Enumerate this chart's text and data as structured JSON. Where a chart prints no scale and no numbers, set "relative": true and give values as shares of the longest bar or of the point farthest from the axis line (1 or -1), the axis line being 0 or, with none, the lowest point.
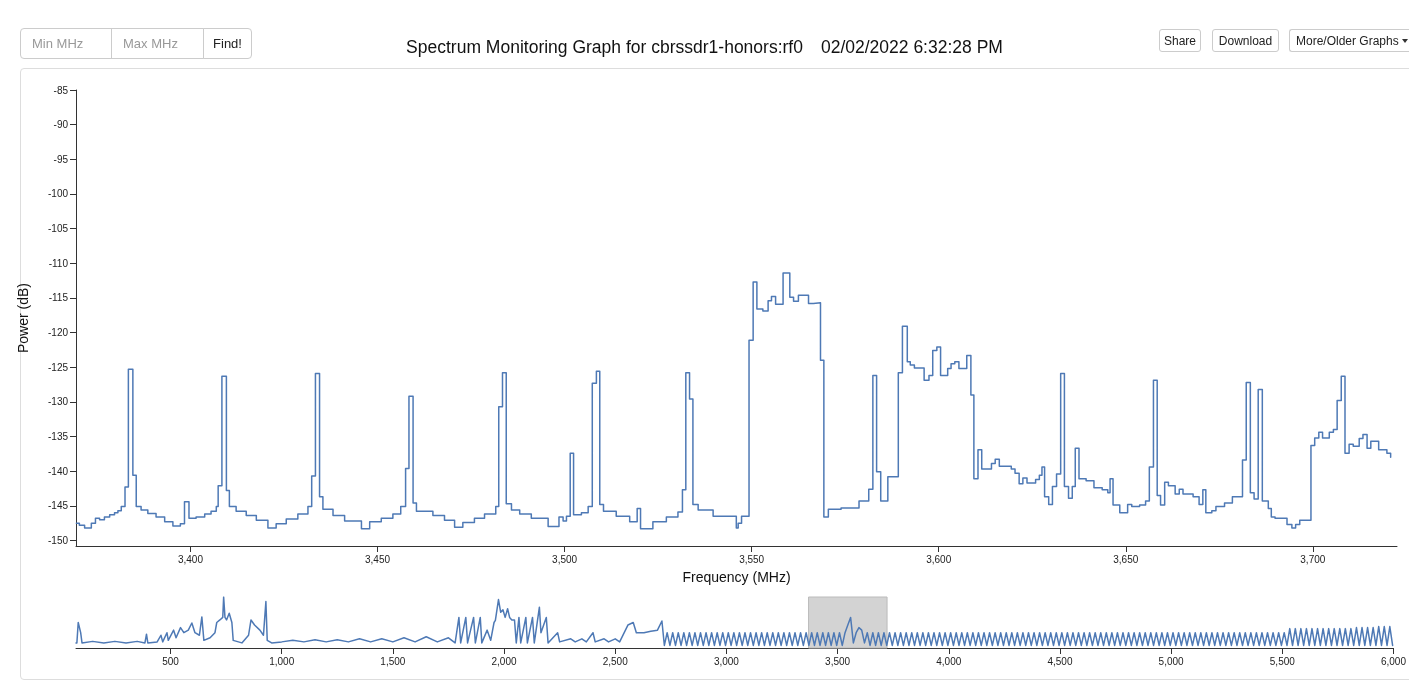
{
  "chart_data": [
    {
      "type": "step",
      "title": "Spectrum Monitoring Graph for cbrssdr1-honors:rf0",
      "subtitle": "02/02/2022 6:32:28 PM",
      "xlabel": "Frequency (MHz)",
      "ylabel": "Power (dB)",
      "annotations": [
        "Min MHz",
        "Max MHz",
        "Find!",
        "Share",
        "Download",
        "More/Older Graphs"
      ],
      "x": [
        3369.5,
        3370.3,
        3371.7,
        3373.5,
        3374.6,
        3375.7,
        3377,
        3378.4,
        3379.7,
        3380.6,
        3381.5,
        3382.5,
        3383.4,
        3384.6,
        3385.5,
        3386.8,
        3388.6,
        3390.8,
        3393.1,
        3395.3,
        3397.3,
        3398.4,
        3399.6,
        3401.5,
        3403.8,
        3405.5,
        3406.9,
        3407.4,
        3408.4,
        3409.6,
        3410.4,
        3412.2,
        3414.9,
        3417.6,
        3420.7,
        3422.9,
        3425.6,
        3428.7,
        3431.4,
        3432.4,
        3433.4,
        3434.5,
        3435.4,
        3438.1,
        3441.2,
        3445.7,
        3447.9,
        3451,
        3454.1,
        3456.2,
        3457.5,
        3458.4,
        3459.5,
        3460.4,
        3464.8,
        3467.9,
        3470.6,
        3472.8,
        3475.9,
        3478.6,
        3481.6,
        3482.4,
        3483.4,
        3484.4,
        3485.8,
        3488,
        3491.1,
        3495.6,
        3498.5,
        3499.6,
        3500.5,
        3501.5,
        3502.4,
        3504.5,
        3506.3,
        3507.4,
        3508.5,
        3509.4,
        3510.4,
        3513.8,
        3517.4,
        3519.4,
        3520.3,
        3523.6,
        3527.2,
        3530.3,
        3531.5,
        3532.4,
        3533.4,
        3534.3,
        3535.7,
        3539.7,
        3545.9,
        3546.4,
        3547.3,
        3549.3,
        3550.4,
        3551.4,
        3553,
        3554.4,
        3555.3,
        3556.4,
        3558.4,
        3560.2,
        3561.2,
        3562.5,
        3565.2,
        3566.5,
        3568.4,
        3569.3,
        3570.5,
        3573.9,
        3578.7,
        3581.3,
        3582.4,
        3583.4,
        3584.5,
        3586.4,
        3589.2,
        3590.3,
        3591.6,
        3592.4,
        3593.5,
        3596.1,
        3597.4,
        3598.4,
        3599.5,
        3600.5,
        3602.4,
        3603.3,
        3604.3,
        3605.4,
        3607.5,
        3608.6,
        3609.4,
        3610.5,
        3611.5,
        3614.1,
        3615.1,
        3616.2,
        3619.4,
        3620.4,
        3621.5,
        3622.5,
        3623.6,
        3625.9,
        3626.9,
        3627.6,
        3628.3,
        3629.4,
        3630.4,
        3631.5,
        3632.6,
        3633.6,
        3634.7,
        3635.7,
        3636.5,
        3637.5,
        3639.4,
        3641.5,
        3643.7,
        3645.2,
        3645.8,
        3646.6,
        3648.4,
        3650.5,
        3651.6,
        3653.7,
        3655.3,
        3656.3,
        3657.4,
        3658.4,
        3659.3,
        3660.4,
        3661.4,
        3663.2,
        3664.3,
        3665.3,
        3668,
        3669.6,
        3670.6,
        3671.4,
        3673,
        3674.1,
        3676.4,
        3678.5,
        3681.2,
        3682.2,
        3683.3,
        3684.3,
        3685.4,
        3686.5,
        3688.1,
        3688.9,
        3689.9,
        3693.1,
        3694.4,
        3695.4,
        3696.5,
        3699.5,
        3700.5,
        3701.6,
        3702.6,
        3704.4,
        3705.5,
        3706.5,
        3707.6,
        3708.6,
        3709.7,
        3710.8,
        3712.4,
        3713.4,
        3714.5,
        3715.5,
        3717.6,
        3719.8,
        3720.8
      ],
      "series": [
        {
          "color": "#4e79b5",
          "values": [
            -147.5,
            -147.8,
            -148.2,
            -147.5,
            -146.8,
            -147,
            -146.6,
            -146.3,
            -146,
            -145.7,
            -145.1,
            -142.3,
            -125.3,
            -140.6,
            -145.1,
            -145.6,
            -146.1,
            -146.6,
            -147.3,
            -147.9,
            -147.6,
            -144.4,
            -146.8,
            -146.6,
            -146.2,
            -145.8,
            -145.1,
            -142.1,
            -126.3,
            -142.8,
            -145.1,
            -145.8,
            -146.4,
            -147.1,
            -148.2,
            -147.6,
            -146.9,
            -146.2,
            -145.1,
            -140.7,
            -125.9,
            -143.7,
            -145.5,
            -146.4,
            -147.2,
            -148.3,
            -147.3,
            -146.8,
            -146.2,
            -145.1,
            -139.6,
            -129.2,
            -144.6,
            -145.8,
            -146.4,
            -147.1,
            -148.1,
            -147.4,
            -146.8,
            -146.2,
            -145.1,
            -130.7,
            -125.8,
            -144.7,
            -145.6,
            -146.2,
            -146.8,
            -148,
            -146.6,
            -147.2,
            -146.5,
            -137.4,
            -146.3,
            -146,
            -145.1,
            -127.3,
            -125.6,
            -144.8,
            -145.8,
            -146.5,
            -147.3,
            -145.4,
            -148.3,
            -147.3,
            -146.6,
            -145.9,
            -142.7,
            -125.8,
            -129.6,
            -144.8,
            -145.6,
            -146.5,
            -148.2,
            -147.5,
            -146.5,
            -121.1,
            -112.7,
            -116.6,
            -116.9,
            -115.4,
            -114.8,
            -115.9,
            -111.4,
            -114.9,
            -115.5,
            -114.6,
            -115.8,
            -115.7,
            -124,
            -146.6,
            -145.5,
            -145.3,
            -144.3,
            -142.6,
            -126.2,
            -140.1,
            -144.3,
            -140.8,
            -125.8,
            -119.1,
            -124.2,
            -124.7,
            -125.1,
            -126.9,
            -126.2,
            -122.6,
            -122.1,
            -126.2,
            -125.2,
            -124.5,
            -124.2,
            -125.2,
            -123.3,
            -129,
            -141.1,
            -136.9,
            -139.7,
            -138.9,
            -138.3,
            -139.3,
            -139.7,
            -140.3,
            -141.8,
            -141,
            -141.7,
            -141.2,
            -140.6,
            -139.4,
            -143.7,
            -144.8,
            -142.2,
            -140.4,
            -125.9,
            -142.2,
            -143.9,
            -142.2,
            -136.7,
            -141.1,
            -141.4,
            -142.4,
            -142.7,
            -143.1,
            -141.1,
            -144.9,
            -146,
            -144.8,
            -145.1,
            -144.9,
            -144.3,
            -139.4,
            -126.9,
            -143.5,
            -144.9,
            -141.6,
            -142.1,
            -143.3,
            -142.6,
            -143.3,
            -143.7,
            -144.8,
            -142.7,
            -146,
            -145.7,
            -145.1,
            -144.6,
            -143.7,
            -138.4,
            -127.2,
            -143.1,
            -144,
            -128.2,
            -144.3,
            -145.4,
            -146.6,
            -146.8,
            -147.7,
            -148.2,
            -147.7,
            -147.1,
            -136.3,
            -135.2,
            -134.4,
            -135.2,
            -134.4,
            -134,
            -129.8,
            -126.3,
            -137.4,
            -136.1,
            -136.4,
            -135.3,
            -134.7,
            -136.7,
            -135.7,
            -136.9,
            -137.4,
            -138
          ]
        }
      ],
      "xlim": [
        3369.4,
        3722.5
      ],
      "ylim": [
        -150.8,
        -85
      ],
      "xticks": [
        {
          "value": 3400,
          "label": "3,400"
        },
        {
          "value": 3450,
          "label": "3,450"
        },
        {
          "value": 3500,
          "label": "3,500"
        },
        {
          "value": 3550,
          "label": "3,550"
        },
        {
          "value": 3600,
          "label": "3,600"
        },
        {
          "value": 3650,
          "label": "3,650"
        },
        {
          "value": 3700,
          "label": "3,700"
        }
      ],
      "yticks": [
        -150,
        -145,
        -140,
        -135,
        -130,
        -125,
        -120,
        -115,
        -110,
        -105,
        -100,
        -95,
        -90,
        -85
      ]
    },
    {
      "type": "line",
      "relative": true,
      "x": [
        75,
        79,
        85,
        96,
        102,
        150,
        200,
        250,
        300,
        350,
        385,
        392,
        398,
        440,
        457,
        465,
        484,
        490,
        514,
        525,
        545,
        560,
        580,
        596,
        610,
        630,
        641,
        650,
        678,
        700,
        708,
        722,
        735,
        739,
        745,
        752,
        764,
        776,
        782,
        821,
        851,
        862,
        878,
        902,
        918,
        929,
        935,
        955,
        1000,
        1050,
        1100,
        1150,
        1200,
        1250,
        1300,
        1350,
        1400,
        1450,
        1500,
        1550,
        1600,
        1650,
        1700,
        1750,
        1780,
        1797,
        1805,
        1828,
        1836,
        1863,
        1871,
        1893,
        1900,
        1924,
        1940,
        1955,
        1961,
        1975,
        1985,
        1995,
        2005,
        2016,
        2025,
        2035,
        2047,
        2055,
        2067,
        2075,
        2098,
        2105,
        2128,
        2136,
        2159,
        2166,
        2190,
        2198,
        2241,
        2250,
        2300,
        2320,
        2350,
        2370,
        2400,
        2410,
        2450,
        2470,
        2500,
        2520,
        2557,
        2581,
        2595,
        2629,
        2660,
        2690,
        2710,
        2721,
        2733.5,
        2746,
        2758.5,
        2771,
        2783.5,
        2796,
        2808.5,
        2821,
        2833.5,
        2846,
        2858.5,
        2871,
        2883.5,
        2896,
        2908.5,
        2921,
        2933.5,
        2946,
        2958.5,
        2971,
        2983.5,
        2996,
        3008.5,
        3021,
        3033.5,
        3046,
        3058.5,
        3071,
        3083.5,
        3096,
        3108.5,
        3121,
        3133.5,
        3146,
        3158.5,
        3171,
        3183.5,
        3196,
        3208.5,
        3221,
        3233.5,
        3246,
        3258.5,
        3271,
        3283.5,
        3296,
        3308.5,
        3321,
        3333.5,
        3346,
        3358.5,
        3371,
        3383.5,
        3396,
        3408.5,
        3421,
        3433.5,
        3446,
        3458.5,
        3471,
        3483.5,
        3496,
        3508.5,
        3521,
        3533.5,
        3546,
        3558.5,
        3571,
        3583.5,
        3596,
        3608.5,
        3621,
        3633.5,
        3646,
        3658.5,
        3671,
        3683.5,
        3696,
        3708.5,
        3721,
        3733.5,
        3746,
        3758.5,
        3771,
        3783.5,
        3796,
        3808.5,
        3821,
        3833.5,
        3846,
        3858.5,
        3871,
        3883.5,
        3896,
        3908.5,
        3921,
        3933.5,
        3946,
        3958.5,
        3971,
        3983.5,
        3996,
        4008.5,
        4021,
        4033.5,
        4046,
        4058.5,
        4071,
        4083.5,
        4096,
        4108.5,
        4121,
        4133.5,
        4146,
        4158.5,
        4171,
        4183.5,
        4196,
        4208.5,
        4221,
        4233.5,
        4246,
        4258.5,
        4271,
        4283.5,
        4296,
        4308.5,
        4321,
        4333.5,
        4346,
        4358.5,
        4371,
        4383.5,
        4396,
        4408.5,
        4421,
        4433.5,
        4446,
        4458.5,
        4471,
        4483.5,
        4496,
        4508.5,
        4521,
        4533.5,
        4546,
        4558.5,
        4571,
        4583.5,
        4596,
        4608.5,
        4621,
        4633.5,
        4646,
        4658.5,
        4671,
        4683.5,
        4696,
        4708.5,
        4721,
        4733.5,
        4746,
        4758.5,
        4771,
        4783.5,
        4796,
        4808.5,
        4821,
        4833.5,
        4846,
        4858.5,
        4871,
        4883.5,
        4896,
        4908.5,
        4921,
        4933.5,
        4946,
        4958.5,
        4971,
        4983.5,
        4996,
        5008.5,
        5021,
        5033.5,
        5046,
        5058.5,
        5071,
        5083.5,
        5096,
        5108.5,
        5121,
        5133.5,
        5146,
        5158.5,
        5171,
        5183.5,
        5196,
        5208.5,
        5221,
        5233.5,
        5246,
        5258.5,
        5271,
        5283.5,
        5296,
        5308.5,
        5321,
        5333.5,
        5346,
        5358.5,
        5371,
        5383.5,
        5396,
        5408.5,
        5421,
        5433.5,
        5446,
        5458.5,
        5471,
        5483.5,
        5496,
        5508.5,
        5521,
        5533.5,
        5546,
        5558.5,
        5571,
        5583.5,
        5596,
        5608.5,
        5621,
        5633.5,
        5646,
        5658.5,
        5671,
        5683.5,
        5696,
        5708.5,
        5721,
        5733.5,
        5746,
        5758.5,
        5771,
        5783.5,
        5796,
        5808.5,
        5821,
        5833.5,
        5846,
        5858.5,
        5871,
        5883.5,
        5896,
        5908.5,
        5921,
        5933.5,
        5946,
        5958.5,
        5971,
        5983.5,
        5996
      ],
      "series": [
        {
          "color": "#4e79b5",
          "values": [
            0.1,
            0.1,
            0.5,
            0.3,
            0.1,
            0.13,
            0.1,
            0.13,
            0.1,
            0.13,
            0.1,
            0.27,
            0.1,
            0.12,
            0.25,
            0.12,
            0.3,
            0.15,
            0.35,
            0.2,
            0.4,
            0.3,
            0.35,
            0.49,
            0.3,
            0.25,
            0.61,
            0.15,
            0.2,
            0.3,
            0.5,
            0.55,
            0.6,
            1,
            0.6,
            0.55,
            0.68,
            0.5,
            0.15,
            0.1,
            0.25,
            0.55,
            0.45,
            0.35,
            0.25,
            0.91,
            0.15,
            0.1,
            0.12,
            0.15,
            0.12,
            0.16,
            0.12,
            0.16,
            0.12,
            0.18,
            0.12,
            0.18,
            0.12,
            0.2,
            0.12,
            0.22,
            0.12,
            0.2,
            0.1,
            0.6,
            0.1,
            0.6,
            0.1,
            0.6,
            0.1,
            0.6,
            0.1,
            0.35,
            0.15,
            0.5,
            0.54,
            0.95,
            0.7,
            0.75,
            0.6,
            0.77,
            0.6,
            0.55,
            0.55,
            0.1,
            0.6,
            0.1,
            0.6,
            0.1,
            0.6,
            0.1,
            0.8,
            0.3,
            0.6,
            0.1,
            0.3,
            0.12,
            0.18,
            0.12,
            0.18,
            0.12,
            0.3,
            0.12,
            0.18,
            0.12,
            0.18,
            0.12,
            0.45,
            0.5,
            0.3,
            0.3,
            0.33,
            0.35,
            0.53,
            0.05,
            0.3,
            0.05,
            0.3,
            0.05,
            0.3,
            0.05,
            0.3,
            0.05,
            0.3,
            0.05,
            0.3,
            0.05,
            0.3,
            0.05,
            0.3,
            0.05,
            0.3,
            0.05,
            0.3,
            0.05,
            0.3,
            0.05,
            0.3,
            0.05,
            0.3,
            0.05,
            0.3,
            0.05,
            0.3,
            0.05,
            0.3,
            0.05,
            0.3,
            0.05,
            0.3,
            0.05,
            0.3,
            0.05,
            0.3,
            0.05,
            0.3,
            0.05,
            0.3,
            0.05,
            0.3,
            0.05,
            0.3,
            0.05,
            0.3,
            0.05,
            0.3,
            0.05,
            0.3,
            0.05,
            0.3,
            0.05,
            0.3,
            0.05,
            0.3,
            0.05,
            0.3,
            0.05,
            0.3,
            0.05,
            0.3,
            0.45,
            0.6,
            0.1,
            0.3,
            0.4,
            0.35,
            0.1,
            0.3,
            0.05,
            0.3,
            0.05,
            0.3,
            0.05,
            0.3,
            0.05,
            0.3,
            0.05,
            0.3,
            0.05,
            0.3,
            0.05,
            0.3,
            0.05,
            0.3,
            0.05,
            0.3,
            0.05,
            0.3,
            0.05,
            0.3,
            0.05,
            0.3,
            0.05,
            0.3,
            0.05,
            0.3,
            0.05,
            0.3,
            0.05,
            0.3,
            0.05,
            0.3,
            0.05,
            0.3,
            0.05,
            0.3,
            0.05,
            0.3,
            0.05,
            0.3,
            0.05,
            0.3,
            0.05,
            0.3,
            0.05,
            0.3,
            0.05,
            0.3,
            0.05,
            0.3,
            0.05,
            0.3,
            0.05,
            0.3,
            0.05,
            0.3,
            0.05,
            0.3,
            0.05,
            0.3,
            0.05,
            0.3,
            0.05,
            0.3,
            0.05,
            0.3,
            0.05,
            0.3,
            0.05,
            0.3,
            0.05,
            0.3,
            0.05,
            0.3,
            0.05,
            0.3,
            0.05,
            0.3,
            0.05,
            0.3,
            0.05,
            0.3,
            0.05,
            0.3,
            0.05,
            0.3,
            0.05,
            0.3,
            0.05,
            0.3,
            0.05,
            0.3,
            0.05,
            0.3,
            0.05,
            0.3,
            0.05,
            0.3,
            0.05,
            0.3,
            0.05,
            0.3,
            0.05,
            0.3,
            0.05,
            0.3,
            0.05,
            0.3,
            0.05,
            0.3,
            0.05,
            0.3,
            0.05,
            0.3,
            0.05,
            0.3,
            0.05,
            0.3,
            0.05,
            0.3,
            0.05,
            0.3,
            0.05,
            0.3,
            0.05,
            0.3,
            0.05,
            0.3,
            0.05,
            0.3,
            0.05,
            0.3,
            0.05,
            0.3,
            0.05,
            0.3,
            0.05,
            0.3,
            0.05,
            0.3,
            0.05,
            0.3,
            0.05,
            0.3,
            0.05,
            0.3,
            0.05,
            0.3,
            0.05,
            0.38,
            0.05,
            0.38,
            0.05,
            0.38,
            0.05,
            0.38,
            0.05,
            0.38,
            0.05,
            0.38,
            0.05,
            0.38,
            0.05,
            0.38,
            0.05,
            0.38,
            0.05,
            0.38,
            0.05,
            0.38,
            0.05,
            0.38,
            0.05,
            0.4,
            0.05,
            0.4,
            0.05,
            0.4,
            0.05,
            0.4,
            0.05,
            0.42,
            0.05,
            0.42,
            0.05,
            0.42,
            0.05
          ]
        }
      ],
      "xlim": [
        75,
        6000
      ],
      "xticks": [
        {
          "value": 500,
          "label": "500"
        },
        {
          "value": 1000,
          "label": "1,000"
        },
        {
          "value": 1500,
          "label": "1,500"
        },
        {
          "value": 2000,
          "label": "2,000"
        },
        {
          "value": 2500,
          "label": "2,500"
        },
        {
          "value": 3000,
          "label": "3,000"
        },
        {
          "value": 3500,
          "label": "3,500"
        },
        {
          "value": 4000,
          "label": "4,000"
        },
        {
          "value": 4500,
          "label": "4,500"
        },
        {
          "value": 5000,
          "label": "5,000"
        },
        {
          "value": 5500,
          "label": "5,500"
        },
        {
          "value": 6000,
          "label": "6,000"
        }
      ],
      "bands": [
        {
          "axis": "x",
          "from": 3369.4,
          "to": 3722.5,
          "color": "#d3d3d3"
        }
      ]
    }
  ]
}
